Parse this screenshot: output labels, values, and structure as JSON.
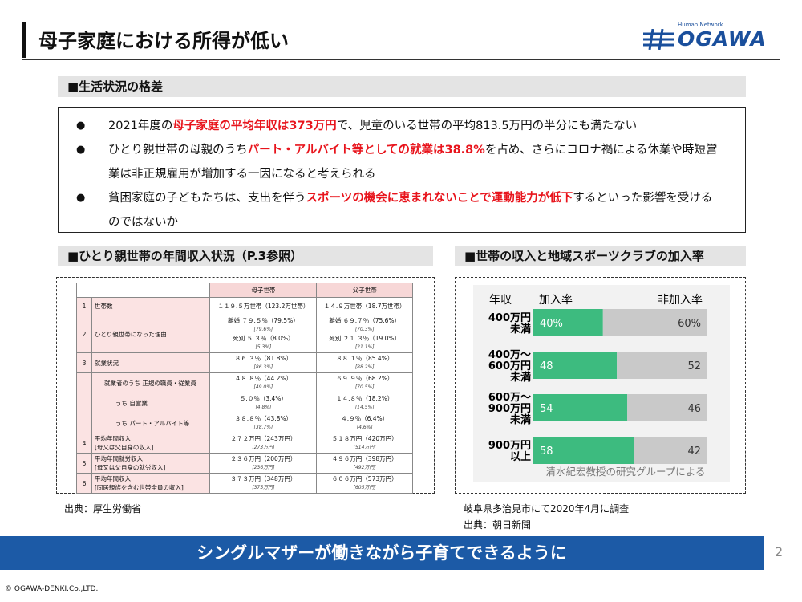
{
  "header": {
    "title": "母子家庭における所得が低い",
    "logo_tagline": "Human Network",
    "logo": "OGAWA"
  },
  "living_gap": {
    "heading": "■生活状況の格差",
    "bullets": [
      [
        {
          "text": "2021年度の",
          "red": false
        },
        {
          "text": "母子家庭の平均年収は373万円",
          "red": true
        },
        {
          "text": "で、児童のいる世帯の平均813.5万円の半分にも満たない",
          "red": false
        }
      ],
      [
        {
          "text": "ひとり親世帯の母親のうち",
          "red": false
        },
        {
          "text": "パート・アルバイト等としての就業は38.8%",
          "red": true
        },
        {
          "text": "を占め、さらにコロナ禍による休業や時短営業は非正規雇用が増加する一因になると考えられる",
          "red": false
        }
      ],
      [
        {
          "text": "貧困家庭の子どもたちは、支出を伴う",
          "red": false
        },
        {
          "text": "スポーツの機会に恵まれないことで運動能力が低下",
          "red": true
        },
        {
          "text": "するといった影響を受けるのではないか",
          "red": false
        }
      ]
    ]
  },
  "income_table": {
    "heading": "■ひとり親世帯の年間収入状況（P.3参照）",
    "columns": [
      "母子世帯",
      "父子世帯"
    ],
    "rows": [
      {
        "num": 1,
        "label": "世帯数",
        "cells": [
          [
            "１１９.５万世帯（123.2万世帯）"
          ],
          [
            "１４.９万世帯（18.7万世帯）"
          ]
        ]
      },
      {
        "num": 2,
        "label": "ひとり親世帯になった理由",
        "cells": [
          [
            "離婚 ７９.５％（79.5%）",
            "[79.6%]",
            "死別 ５.３％（8.0%）",
            "[5.3%]"
          ],
          [
            "離婚 ６９.７％（75.6%）",
            "[70.3%]",
            "死別 ２１.３％（19.0%）",
            "[21.1%]"
          ]
        ]
      },
      {
        "num": 3,
        "label": "就業状況",
        "cells": [
          [
            "８６.３％（81.8%）",
            "[86.3%]"
          ],
          [
            "８８.１％（85.4%）",
            "[88.2%]"
          ]
        ]
      },
      {
        "label": "就業者のうち 正規の職員・従業員",
        "cells": [
          [
            "４８.８％（44.2%）",
            "[49.0%]"
          ],
          [
            "６９.９％（68.2%）",
            "[70.5%]"
          ]
        ]
      },
      {
        "label": "うち 自営業",
        "cells": [
          [
            "５.０％（3.4%）",
            "[4.8%]"
          ],
          [
            "１４.８％（18.2%）",
            "[14.5%]"
          ]
        ]
      },
      {
        "label": "うち パート・アルバイト等",
        "cells": [
          [
            "３８.８％（43.8%）",
            "[38.7%]"
          ],
          [
            "４.９％（6.4%）",
            "[4.6%]"
          ]
        ]
      },
      {
        "num": 4,
        "label": "平均年間収入",
        "note": "[母又は父自身の収入]",
        "cells": [
          [
            "２７２万円（243万円）",
            "[273万円]"
          ],
          [
            "５１８万円（420万円）",
            "[514万円]"
          ]
        ]
      },
      {
        "num": 5,
        "label": "平均年間就労収入",
        "note": "[母又は父自身の就労収入]",
        "cells": [
          [
            "２３６万円（200万円）",
            "[236万円]"
          ],
          [
            "４９６万円（398万円）",
            "[492万円]"
          ]
        ]
      },
      {
        "num": 6,
        "label": "平均年間収入",
        "note": "[同居親族を含む世帯全員の収入]",
        "cells": [
          [
            "３７３万円（348万円）",
            "[375万円]"
          ],
          [
            "６０６万円（573万円）",
            "[605万円]"
          ]
        ]
      }
    ],
    "source": "出典：厚生労働省"
  },
  "chart_data": {
    "type": "stacked-barh",
    "heading": "■世帯の収入と地域スポーツクラブの加入率",
    "category_header": "年収",
    "categories": [
      "400万円\n未満",
      "400万～\n600万円\n未満",
      "600万～\n900万円\n未満",
      "900万円\n以上"
    ],
    "series": [
      {
        "name": "加入率",
        "color": "#3dbb7f",
        "values": [
          40,
          48,
          54,
          58
        ],
        "value_labels": [
          "40%",
          "48",
          "54",
          "58"
        ]
      },
      {
        "name": "非加入率",
        "color": "#c9c9c9",
        "values": [
          60,
          52,
          46,
          42
        ],
        "value_labels": [
          "60%",
          "52",
          "46",
          "42"
        ]
      }
    ],
    "note": "清水紀宏教授の研究グループによる",
    "survey": "岐阜県多治見市にて2020年4月に調査",
    "source": "出典：朝日新聞"
  },
  "banner": "シングルマザーが働きながら子育てできるように",
  "page_number": 2,
  "copyright": "© OGAWA-DENKI.Co.,LTD."
}
